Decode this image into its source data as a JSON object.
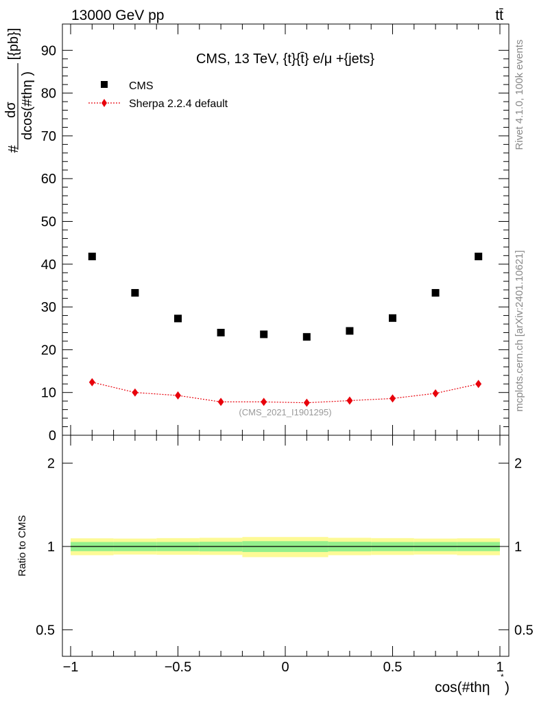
{
  "header": {
    "energy_label": "13000 GeV pp",
    "process_label": "tt̄"
  },
  "side_labels": {
    "rivet": "Rivet 4.1.0,  100k events",
    "mcplots": "mcplots.cern.ch [arXiv:2401.10621]"
  },
  "colors": {
    "data": "#000000",
    "mc": "#e8000b",
    "band_outer": "#fdfa96",
    "band_inner": "#94f08c"
  },
  "chart_data": [
    {
      "type": "scatter",
      "title": "CMS, 13 TeV, {t}{t̄} e/μ +{jets}",
      "watermark": "(CMS_2021_I1901295)",
      "ylabel_numerator": "dσ",
      "ylabel_denominator": "dcos(#thη )",
      "ylabel_prefix": "#",
      "ylabel_unit": "[{pb}]",
      "ylim": [
        0,
        96
      ],
      "yticks": [
        0,
        10,
        20,
        30,
        40,
        50,
        60,
        70,
        80,
        90
      ],
      "xlim": [
        -1.05,
        1.05
      ],
      "x": [
        -0.9,
        -0.7,
        -0.5,
        -0.3,
        -0.1,
        0.1,
        0.3,
        0.5,
        0.7,
        0.9
      ],
      "series": [
        {
          "name": "CMS",
          "marker": "square",
          "values": [
            41.8,
            33.3,
            27.3,
            24.0,
            23.6,
            23.0,
            24.4,
            27.4,
            33.3,
            41.8
          ]
        },
        {
          "name": "Sherpa 2.2.4 default",
          "marker": "diamond",
          "line": "dotted",
          "values": [
            12.4,
            10.0,
            9.3,
            7.8,
            7.8,
            7.6,
            8.1,
            8.6,
            9.8,
            12.0
          ]
        }
      ]
    },
    {
      "type": "line",
      "ylabel": "Ratio to CMS",
      "xlabel": "cos(#thη",
      "xlabel_superscript": "*",
      "xlabel_close": ")",
      "scale": "log",
      "ylim": [
        0.42,
        2.3
      ],
      "yticks": [
        0.5,
        1,
        2
      ],
      "ytick_labels": [
        "0.5",
        "1",
        "2"
      ],
      "xlim": [
        -1.05,
        1.05
      ],
      "xticks": [
        -1,
        -0.5,
        0,
        0.5,
        1
      ],
      "xtick_labels": [
        "−1",
        "−0.5",
        "0",
        "0.5",
        "1"
      ],
      "ratio_line": 1.0,
      "bands": [
        {
          "x0": -1.0,
          "x1": -0.8,
          "outer": [
            0.93,
            1.07
          ],
          "inner": [
            0.962,
            1.038
          ]
        },
        {
          "x0": -0.8,
          "x1": -0.6,
          "outer": [
            0.935,
            1.068
          ],
          "inner": [
            0.962,
            1.038
          ]
        },
        {
          "x0": -0.6,
          "x1": -0.4,
          "outer": [
            0.933,
            1.072
          ],
          "inner": [
            0.962,
            1.038
          ]
        },
        {
          "x0": -0.4,
          "x1": -0.2,
          "outer": [
            0.932,
            1.075
          ],
          "inner": [
            0.96,
            1.04
          ]
        },
        {
          "x0": -0.2,
          "x1": 0.0,
          "outer": [
            0.915,
            1.082
          ],
          "inner": [
            0.955,
            1.045
          ]
        },
        {
          "x0": 0.0,
          "x1": 0.2,
          "outer": [
            0.915,
            1.082
          ],
          "inner": [
            0.955,
            1.045
          ]
        },
        {
          "x0": 0.2,
          "x1": 0.4,
          "outer": [
            0.93,
            1.075
          ],
          "inner": [
            0.96,
            1.04
          ]
        },
        {
          "x0": 0.4,
          "x1": 0.6,
          "outer": [
            0.932,
            1.072
          ],
          "inner": [
            0.962,
            1.038
          ]
        },
        {
          "x0": 0.6,
          "x1": 0.8,
          "outer": [
            0.935,
            1.068
          ],
          "inner": [
            0.962,
            1.038
          ]
        },
        {
          "x0": 0.8,
          "x1": 1.0,
          "outer": [
            0.93,
            1.07
          ],
          "inner": [
            0.962,
            1.038
          ]
        }
      ]
    }
  ]
}
